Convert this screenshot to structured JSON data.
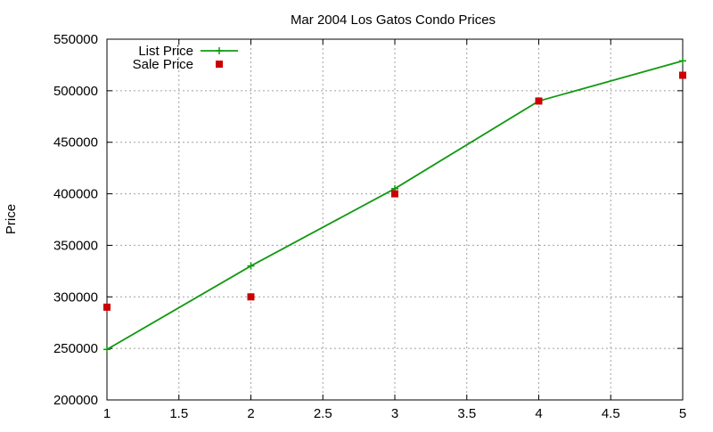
{
  "chart_data": {
    "type": "line",
    "title": "Mar 2004 Los Gatos Condo Prices",
    "xlabel": "",
    "ylabel": "Price",
    "xlim": [
      1,
      5
    ],
    "ylim": [
      200000,
      550000
    ],
    "x_ticks": [
      1,
      1.5,
      2,
      2.5,
      3,
      3.5,
      4,
      4.5,
      5
    ],
    "y_ticks": [
      200000,
      250000,
      300000,
      350000,
      400000,
      450000,
      500000,
      550000
    ],
    "grid": true,
    "legend_position": "top-left",
    "series": [
      {
        "name": "List Price",
        "style": "line-with-plus-markers",
        "color": "#109910",
        "x": [
          1,
          2,
          3,
          4,
          5
        ],
        "y": [
          249000,
          330000,
          405000,
          490000,
          529000
        ]
      },
      {
        "name": "Sale Price",
        "style": "square-markers",
        "color": "#cc0000",
        "x": [
          1,
          2,
          3,
          4,
          5
        ],
        "y": [
          290000,
          300000,
          400000,
          490000,
          515000
        ]
      }
    ]
  }
}
